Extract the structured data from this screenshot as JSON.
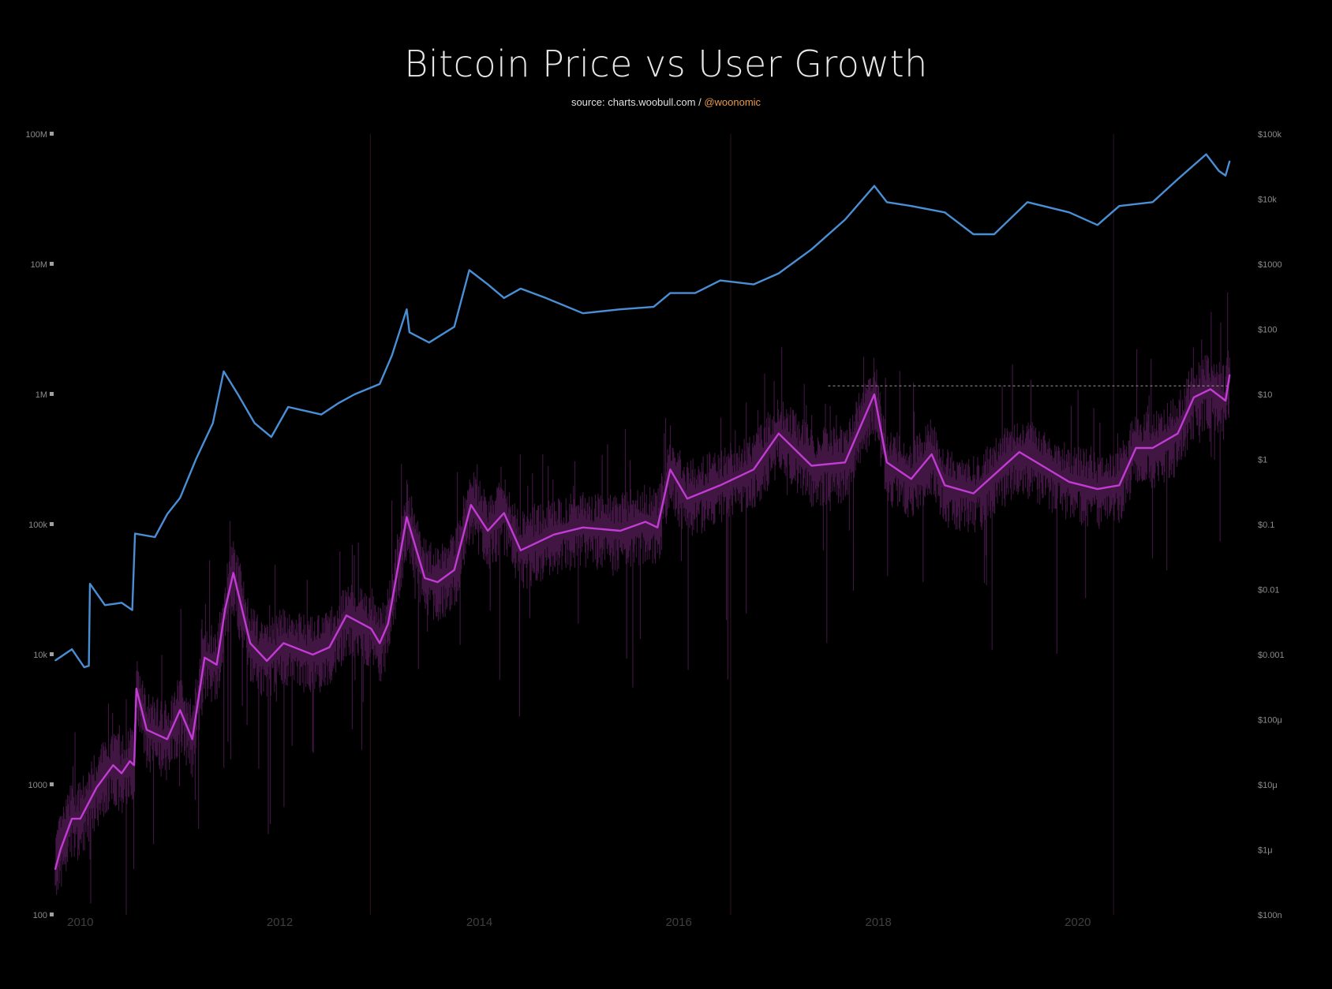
{
  "chart_data": {
    "type": "line",
    "title": "Bitcoin Price vs User Growth",
    "subtitle": {
      "source": "source: charts.woobull.com /",
      "handle": "@woonomic"
    },
    "x_axis": {
      "type": "date",
      "range": [
        "2009-10-01",
        "2021-07-15"
      ],
      "tick_labels": [
        "2010",
        "2012",
        "2014",
        "2016",
        "2018",
        "2020"
      ]
    },
    "y_left": {
      "scale": "log",
      "range": [
        100,
        100000000
      ],
      "tick_labels": [
        "100M",
        "10M",
        "1M",
        "100k",
        "10k",
        "1000",
        "100"
      ],
      "tick_values": [
        100000000,
        10000000,
        1000000,
        100000,
        10000,
        1000,
        100
      ]
    },
    "y_right": {
      "scale": "log",
      "range": [
        1e-07,
        100000
      ],
      "tick_labels": [
        "$100k",
        "$10k",
        "$1000",
        "$100",
        "$10",
        "$1",
        "$0.1",
        "$0.01",
        "$0.001",
        "$100μ",
        "$10μ",
        "$1μ",
        "$100n"
      ],
      "tick_values": [
        100000,
        10000,
        1000,
        100,
        10,
        1,
        0.1,
        0.01,
        0.001,
        0.0001,
        1e-05,
        1e-06,
        1e-07
      ]
    },
    "reference_line": {
      "axis": "right",
      "value": 13.5,
      "from": "2017-07-01",
      "to": "2021-07-10",
      "style": "dashed"
    },
    "event_markers": [
      "2012-11-28",
      "2016-07-09",
      "2020-05-11"
    ],
    "grid": false,
    "legend": "none",
    "series": [
      {
        "axis": "left",
        "color": "#4a8fd6",
        "points": [
          [
            "2009-10-01",
            9000
          ],
          [
            "2009-12-01",
            11000
          ],
          [
            "2010-01-15",
            8000
          ],
          [
            "2010-02-01",
            8200
          ],
          [
            "2010-02-05",
            35000
          ],
          [
            "2010-04-01",
            24000
          ],
          [
            "2010-06-01",
            25000
          ],
          [
            "2010-07-10",
            22000
          ],
          [
            "2010-07-20",
            85000
          ],
          [
            "2010-10-01",
            80000
          ],
          [
            "2010-11-15",
            120000
          ],
          [
            "2011-01-01",
            160000
          ],
          [
            "2011-03-01",
            320000
          ],
          [
            "2011-05-01",
            600000
          ],
          [
            "2011-06-10",
            1500000
          ],
          [
            "2011-08-01",
            1000000
          ],
          [
            "2011-10-01",
            600000
          ],
          [
            "2011-12-01",
            470000
          ],
          [
            "2012-02-01",
            800000
          ],
          [
            "2012-06-01",
            700000
          ],
          [
            "2012-08-01",
            850000
          ],
          [
            "2012-10-01",
            1000000
          ],
          [
            "2013-01-01",
            1200000
          ],
          [
            "2013-02-15",
            2000000
          ],
          [
            "2013-04-10",
            4500000
          ],
          [
            "2013-04-20",
            3000000
          ],
          [
            "2013-07-01",
            2500000
          ],
          [
            "2013-10-01",
            3300000
          ],
          [
            "2013-11-25",
            9000000
          ],
          [
            "2014-02-01",
            7000000
          ],
          [
            "2014-04-01",
            5500000
          ],
          [
            "2014-06-01",
            6500000
          ],
          [
            "2014-09-01",
            5500000
          ],
          [
            "2015-01-15",
            4200000
          ],
          [
            "2015-06-01",
            4500000
          ],
          [
            "2015-10-01",
            4700000
          ],
          [
            "2015-12-01",
            6000000
          ],
          [
            "2016-03-01",
            6000000
          ],
          [
            "2016-06-01",
            7500000
          ],
          [
            "2016-10-01",
            7000000
          ],
          [
            "2017-01-01",
            8500000
          ],
          [
            "2017-05-01",
            13000000
          ],
          [
            "2017-09-01",
            22000000
          ],
          [
            "2017-12-17",
            40000000
          ],
          [
            "2018-02-01",
            30000000
          ],
          [
            "2018-05-01",
            28000000
          ],
          [
            "2018-09-01",
            25000000
          ],
          [
            "2018-12-15",
            17000000
          ],
          [
            "2019-03-01",
            17000000
          ],
          [
            "2019-07-01",
            30000000
          ],
          [
            "2019-12-01",
            25000000
          ],
          [
            "2020-03-13",
            20000000
          ],
          [
            "2020-06-01",
            28000000
          ],
          [
            "2020-10-01",
            30000000
          ],
          [
            "2021-01-01",
            45000000
          ],
          [
            "2021-04-15",
            70000000
          ],
          [
            "2021-06-01",
            52000000
          ],
          [
            "2021-06-25",
            48000000
          ],
          [
            "2021-07-10",
            62000000
          ]
        ]
      },
      {
        "axis": "right",
        "color": "#c23bd4",
        "points": [
          [
            "2009-10-01",
            5e-07
          ],
          [
            "2009-10-20",
            1e-06
          ],
          [
            "2009-12-01",
            3e-06
          ],
          [
            "2010-01-01",
            3e-06
          ],
          [
            "2010-03-01",
            9e-06
          ],
          [
            "2010-05-01",
            2e-05
          ],
          [
            "2010-06-01",
            1.5e-05
          ],
          [
            "2010-07-01",
            2.3e-05
          ],
          [
            "2010-07-17",
            2e-05
          ],
          [
            "2010-07-25",
            0.0003
          ],
          [
            "2010-09-01",
            7e-05
          ],
          [
            "2010-11-15",
            5e-05
          ],
          [
            "2011-01-01",
            0.00014
          ],
          [
            "2011-02-15",
            5e-05
          ],
          [
            "2011-04-01",
            0.0009
          ],
          [
            "2011-05-15",
            0.0007
          ],
          [
            "2011-06-15",
            0.005
          ],
          [
            "2011-07-15",
            0.018
          ],
          [
            "2011-09-15",
            0.0015
          ],
          [
            "2011-11-15",
            0.0008
          ],
          [
            "2012-01-15",
            0.0015
          ],
          [
            "2012-05-01",
            0.001
          ],
          [
            "2012-07-01",
            0.0013
          ],
          [
            "2012-09-01",
            0.004
          ],
          [
            "2012-12-01",
            0.0025
          ],
          [
            "2013-01-01",
            0.0015
          ],
          [
            "2013-02-01",
            0.003
          ],
          [
            "2013-04-10",
            0.13
          ],
          [
            "2013-06-15",
            0.015
          ],
          [
            "2013-08-01",
            0.013
          ],
          [
            "2013-10-01",
            0.02
          ],
          [
            "2013-12-01",
            0.2
          ],
          [
            "2014-02-01",
            0.08
          ],
          [
            "2014-04-01",
            0.15
          ],
          [
            "2014-06-01",
            0.04
          ],
          [
            "2014-10-01",
            0.07
          ],
          [
            "2015-01-15",
            0.09
          ],
          [
            "2015-06-01",
            0.08
          ],
          [
            "2015-09-01",
            0.11
          ],
          [
            "2015-10-15",
            0.09
          ],
          [
            "2015-12-01",
            0.7
          ],
          [
            "2016-02-01",
            0.25
          ],
          [
            "2016-06-01",
            0.4
          ],
          [
            "2016-10-01",
            0.7
          ],
          [
            "2017-01-01",
            2.5
          ],
          [
            "2017-05-01",
            0.8
          ],
          [
            "2017-09-01",
            0.9
          ],
          [
            "2017-12-17",
            10
          ],
          [
            "2018-02-01",
            0.9
          ],
          [
            "2018-05-01",
            0.5
          ],
          [
            "2018-07-15",
            1.2
          ],
          [
            "2018-09-01",
            0.4
          ],
          [
            "2018-12-15",
            0.3
          ],
          [
            "2019-06-01",
            1.3
          ],
          [
            "2019-12-01",
            0.45
          ],
          [
            "2020-03-13",
            0.35
          ],
          [
            "2020-06-01",
            0.4
          ],
          [
            "2020-08-01",
            1.5
          ],
          [
            "2020-10-01",
            1.5
          ],
          [
            "2021-01-01",
            2.5
          ],
          [
            "2021-03-01",
            9
          ],
          [
            "2021-05-01",
            12
          ],
          [
            "2021-06-25",
            8
          ],
          [
            "2021-07-10",
            20
          ]
        ]
      }
    ]
  }
}
